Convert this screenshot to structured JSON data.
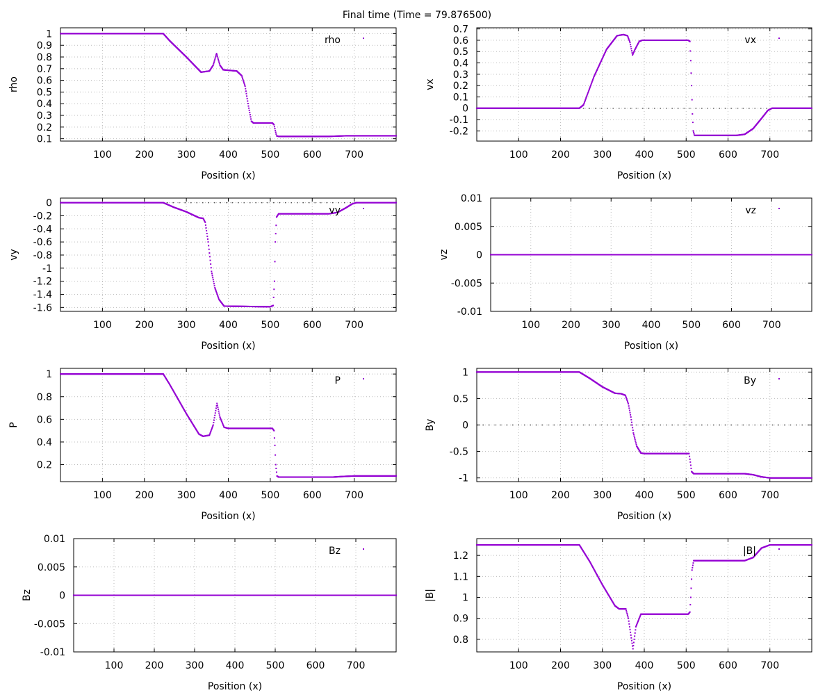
{
  "figure": {
    "title": "Final time (Time = 79.876500)"
  },
  "colors": {
    "series": "#9400d3",
    "grid": "#bbbbbb",
    "zero_line": "#555555",
    "axis": "#000000"
  },
  "chart_data": [
    {
      "type": "scatter",
      "xlabel": "Position (x)",
      "ylabel": "rho",
      "legend": "rho",
      "legend_position": "top-right",
      "xlim": [
        0,
        800
      ],
      "ylim": [
        0.08,
        1.05
      ],
      "xticks": [
        100,
        200,
        300,
        400,
        500,
        600,
        700
      ],
      "yticks": [
        "1",
        "0.9",
        "0.8",
        "0.7",
        "0.6",
        "0.5",
        "0.4",
        "0.3",
        "0.2",
        "0.1"
      ],
      "ytick_values": [
        1,
        0.9,
        0.8,
        0.7,
        0.6,
        0.5,
        0.4,
        0.3,
        0.2,
        0.1
      ],
      "grid": true,
      "zero_line": false,
      "profile": [
        [
          0,
          1.0
        ],
        [
          245,
          1.0
        ],
        [
          260,
          0.94
        ],
        [
          300,
          0.8
        ],
        [
          335,
          0.67
        ],
        [
          355,
          0.68
        ],
        [
          364,
          0.73
        ],
        [
          372,
          0.83
        ],
        [
          380,
          0.73
        ],
        [
          388,
          0.69
        ],
        [
          420,
          0.68
        ],
        [
          432,
          0.64
        ],
        [
          440,
          0.55
        ],
        [
          448,
          0.38
        ],
        [
          455,
          0.25
        ],
        [
          460,
          0.235
        ],
        [
          505,
          0.235
        ],
        [
          509,
          0.22
        ],
        [
          512,
          0.17
        ],
        [
          515,
          0.125
        ],
        [
          520,
          0.12
        ],
        [
          640,
          0.12
        ],
        [
          655,
          0.122
        ],
        [
          680,
          0.125
        ],
        [
          800,
          0.125
        ]
      ]
    },
    {
      "type": "scatter",
      "xlabel": "Position (x)",
      "ylabel": "vx",
      "legend": "vx",
      "legend_position": "top-right",
      "xlim": [
        0,
        800
      ],
      "ylim": [
        -0.29,
        0.71
      ],
      "xticks": [
        100,
        200,
        300,
        400,
        500,
        600,
        700
      ],
      "yticks": [
        "0.7",
        "0.6",
        "0.5",
        "0.4",
        "0.3",
        "0.2",
        "0.1",
        "0",
        "-0.1",
        "-0.2"
      ],
      "ytick_values": [
        0.7,
        0.6,
        0.5,
        0.4,
        0.3,
        0.2,
        0.1,
        0,
        -0.1,
        -0.2
      ],
      "grid": true,
      "zero_line": true,
      "profile": [
        [
          0,
          0.0
        ],
        [
          245,
          0.0
        ],
        [
          255,
          0.03
        ],
        [
          280,
          0.28
        ],
        [
          310,
          0.52
        ],
        [
          335,
          0.64
        ],
        [
          350,
          0.65
        ],
        [
          360,
          0.64
        ],
        [
          366,
          0.58
        ],
        [
          372,
          0.47
        ],
        [
          378,
          0.52
        ],
        [
          388,
          0.59
        ],
        [
          395,
          0.6
        ],
        [
          505,
          0.6
        ],
        [
          509,
          0.59
        ],
        [
          511,
          0.42
        ],
        [
          513,
          0.2
        ],
        [
          515,
          -0.05
        ],
        [
          517,
          -0.2
        ],
        [
          520,
          -0.24
        ],
        [
          620,
          -0.24
        ],
        [
          640,
          -0.23
        ],
        [
          660,
          -0.18
        ],
        [
          680,
          -0.09
        ],
        [
          695,
          -0.02
        ],
        [
          705,
          0.0
        ],
        [
          800,
          0.0
        ]
      ]
    },
    {
      "type": "scatter",
      "xlabel": "Position (x)",
      "ylabel": "vy",
      "legend": "vy",
      "legend_position": "top-right",
      "xlim": [
        0,
        800
      ],
      "ylim": [
        -1.66,
        0.07
      ],
      "xticks": [
        100,
        200,
        300,
        400,
        500,
        600,
        700
      ],
      "yticks": [
        "0",
        "-0.2",
        "-0.4",
        "-0.6",
        "-0.8",
        "-1",
        "-1.2",
        "-1.4",
        "-1.6"
      ],
      "ytick_values": [
        0,
        -0.2,
        -0.4,
        -0.6,
        -0.8,
        -1,
        -1.2,
        -1.4,
        -1.6
      ],
      "grid": true,
      "zero_line": true,
      "profile": [
        [
          0,
          0.0
        ],
        [
          245,
          0.0
        ],
        [
          270,
          -0.07
        ],
        [
          300,
          -0.14
        ],
        [
          330,
          -0.23
        ],
        [
          340,
          -0.24
        ],
        [
          345,
          -0.3
        ],
        [
          352,
          -0.6
        ],
        [
          360,
          -1.05
        ],
        [
          368,
          -1.3
        ],
        [
          378,
          -1.48
        ],
        [
          390,
          -1.58
        ],
        [
          500,
          -1.59
        ],
        [
          507,
          -1.57
        ],
        [
          510,
          -1.2
        ],
        [
          512,
          -0.6
        ],
        [
          515,
          -0.22
        ],
        [
          520,
          -0.17
        ],
        [
          640,
          -0.17
        ],
        [
          660,
          -0.15
        ],
        [
          680,
          -0.08
        ],
        [
          695,
          -0.02
        ],
        [
          705,
          0.0
        ],
        [
          800,
          0.0
        ]
      ]
    },
    {
      "type": "scatter",
      "xlabel": "Position (x)",
      "ylabel": "vz",
      "legend": "vz",
      "legend_position": "top-right",
      "xlim": [
        0,
        800
      ],
      "ylim": [
        -0.01,
        0.01
      ],
      "xticks": [
        100,
        200,
        300,
        400,
        500,
        600,
        700
      ],
      "yticks": [
        "0.01",
        "0.005",
        "0",
        "-0.005",
        "-0.01"
      ],
      "ytick_values": [
        0.01,
        0.005,
        0,
        -0.005,
        -0.01
      ],
      "grid": true,
      "zero_line": false,
      "profile": [
        [
          0,
          0.0
        ],
        [
          800,
          0.0
        ]
      ]
    },
    {
      "type": "scatter",
      "xlabel": "Position (x)",
      "ylabel": "P",
      "legend": "P",
      "legend_position": "top-right",
      "xlim": [
        0,
        800
      ],
      "ylim": [
        0.05,
        1.05
      ],
      "xticks": [
        100,
        200,
        300,
        400,
        500,
        600,
        700
      ],
      "yticks": [
        "1",
        "0.8",
        "0.6",
        "0.4",
        "0.2"
      ],
      "ytick_values": [
        1,
        0.8,
        0.6,
        0.4,
        0.2
      ],
      "grid": true,
      "zero_line": false,
      "profile": [
        [
          0,
          1.0
        ],
        [
          245,
          1.0
        ],
        [
          260,
          0.91
        ],
        [
          300,
          0.65
        ],
        [
          330,
          0.47
        ],
        [
          340,
          0.45
        ],
        [
          355,
          0.46
        ],
        [
          364,
          0.55
        ],
        [
          373,
          0.74
        ],
        [
          380,
          0.62
        ],
        [
          390,
          0.53
        ],
        [
          400,
          0.52
        ],
        [
          505,
          0.52
        ],
        [
          509,
          0.5
        ],
        [
          511,
          0.37
        ],
        [
          513,
          0.2
        ],
        [
          516,
          0.1
        ],
        [
          520,
          0.09
        ],
        [
          650,
          0.09
        ],
        [
          670,
          0.095
        ],
        [
          700,
          0.1
        ],
        [
          800,
          0.1
        ]
      ]
    },
    {
      "type": "scatter",
      "xlabel": "Position (x)",
      "ylabel": "By",
      "legend": "By",
      "legend_position": "top-right",
      "xlim": [
        0,
        800
      ],
      "ylim": [
        -1.07,
        1.07
      ],
      "xticks": [
        100,
        200,
        300,
        400,
        500,
        600,
        700
      ],
      "yticks": [
        "1",
        "0.5",
        "0",
        "-0.5",
        "-1"
      ],
      "ytick_values": [
        1,
        0.5,
        0,
        -0.5,
        -1
      ],
      "grid": true,
      "zero_line": true,
      "profile": [
        [
          0,
          1.0
        ],
        [
          245,
          1.0
        ],
        [
          270,
          0.88
        ],
        [
          300,
          0.72
        ],
        [
          330,
          0.6
        ],
        [
          345,
          0.59
        ],
        [
          355,
          0.56
        ],
        [
          362,
          0.4
        ],
        [
          368,
          0.15
        ],
        [
          374,
          -0.15
        ],
        [
          382,
          -0.4
        ],
        [
          392,
          -0.53
        ],
        [
          400,
          -0.54
        ],
        [
          507,
          -0.54
        ],
        [
          510,
          -0.7
        ],
        [
          513,
          -0.88
        ],
        [
          518,
          -0.92
        ],
        [
          640,
          -0.92
        ],
        [
          660,
          -0.94
        ],
        [
          680,
          -0.98
        ],
        [
          700,
          -1.0
        ],
        [
          800,
          -1.0
        ]
      ]
    },
    {
      "type": "scatter",
      "xlabel": "Position (x)",
      "ylabel": "Bz",
      "legend": "Bz",
      "legend_position": "top-right",
      "xlim": [
        0,
        800
      ],
      "ylim": [
        -0.01,
        0.01
      ],
      "xticks": [
        100,
        200,
        300,
        400,
        500,
        600,
        700
      ],
      "yticks": [
        "0.01",
        "0.005",
        "0",
        "-0.005",
        "-0.01"
      ],
      "ytick_values": [
        0.01,
        0.005,
        0,
        -0.005,
        -0.01
      ],
      "grid": true,
      "zero_line": false,
      "profile": [
        [
          0,
          0.0
        ],
        [
          800,
          0.0
        ]
      ]
    },
    {
      "type": "scatter",
      "xlabel": "Position (x)",
      "ylabel": "|B|",
      "legend": "|B|",
      "legend_position": "top-right",
      "xlim": [
        0,
        800
      ],
      "ylim": [
        0.74,
        1.28
      ],
      "xticks": [
        100,
        200,
        300,
        400,
        500,
        600,
        700
      ],
      "yticks": [
        "1.2",
        "1.1",
        "1",
        "0.9",
        "0.8"
      ],
      "ytick_values": [
        1.2,
        1.1,
        1.0,
        0.9,
        0.8
      ],
      "grid": true,
      "zero_line": false,
      "profile": [
        [
          0,
          1.25
        ],
        [
          245,
          1.25
        ],
        [
          270,
          1.17
        ],
        [
          300,
          1.06
        ],
        [
          330,
          0.96
        ],
        [
          340,
          0.945
        ],
        [
          356,
          0.945
        ],
        [
          362,
          0.9
        ],
        [
          368,
          0.82
        ],
        [
          373,
          0.755
        ],
        [
          380,
          0.86
        ],
        [
          392,
          0.92
        ],
        [
          400,
          0.92
        ],
        [
          505,
          0.92
        ],
        [
          509,
          0.93
        ],
        [
          511,
          1.0
        ],
        [
          514,
          1.13
        ],
        [
          518,
          1.175
        ],
        [
          640,
          1.175
        ],
        [
          660,
          1.19
        ],
        [
          680,
          1.235
        ],
        [
          700,
          1.25
        ],
        [
          800,
          1.25
        ]
      ]
    }
  ]
}
